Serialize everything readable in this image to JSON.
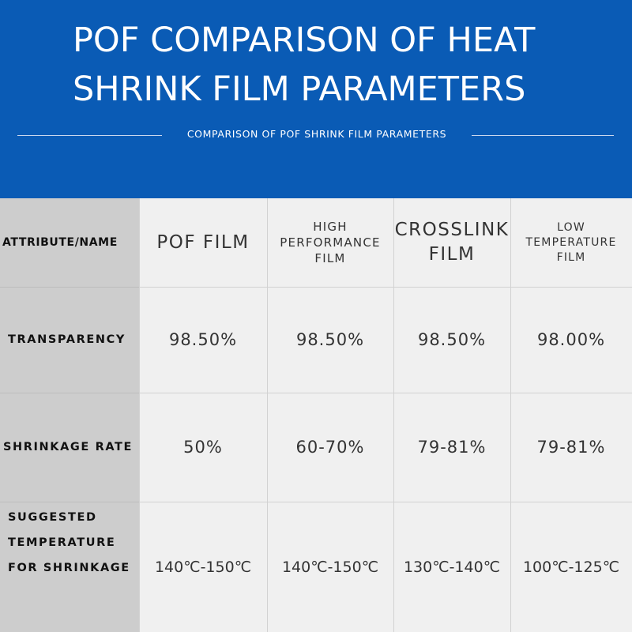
{
  "header": {
    "title_line1": "POF COMPARISON OF HEAT",
    "title_line2": "SHRINK FILM PARAMETERS",
    "subtitle": "COMPARISON OF POF SHRINK FILM PARAMETERS",
    "background_color": "#0a5bb5"
  },
  "table": {
    "columns": [
      {
        "lines": [
          "ATTRIBUTE/NAME"
        ]
      },
      {
        "lines": [
          "POF FILM"
        ]
      },
      {
        "lines": [
          "HIGH",
          "PERFORMANCE",
          "FILM"
        ]
      },
      {
        "lines": [
          "CROSSLINK",
          "FILM"
        ]
      },
      {
        "lines": [
          "LOW",
          "TEMPERATURE",
          "FILM"
        ]
      }
    ],
    "rows": [
      {
        "label_lines": [
          "TRANSPARENCY"
        ],
        "values": [
          "98.50%",
          "98.50%",
          "98.50%",
          "98.00%"
        ]
      },
      {
        "label_lines": [
          "SHRINKAGE RATE"
        ],
        "values": [
          "50%",
          "60-70%",
          "79-81%",
          "79-81%"
        ]
      },
      {
        "label_lines": [
          "SUGGESTED",
          "TEMPERATURE",
          "FOR SHRINKAGE"
        ],
        "values": [
          "140℃-150℃",
          "140℃-150℃",
          "130℃-140℃",
          "100℃-125℃"
        ]
      }
    ],
    "label_column_color": "#cdcdcd",
    "cell_color": "#f0f0f0"
  }
}
